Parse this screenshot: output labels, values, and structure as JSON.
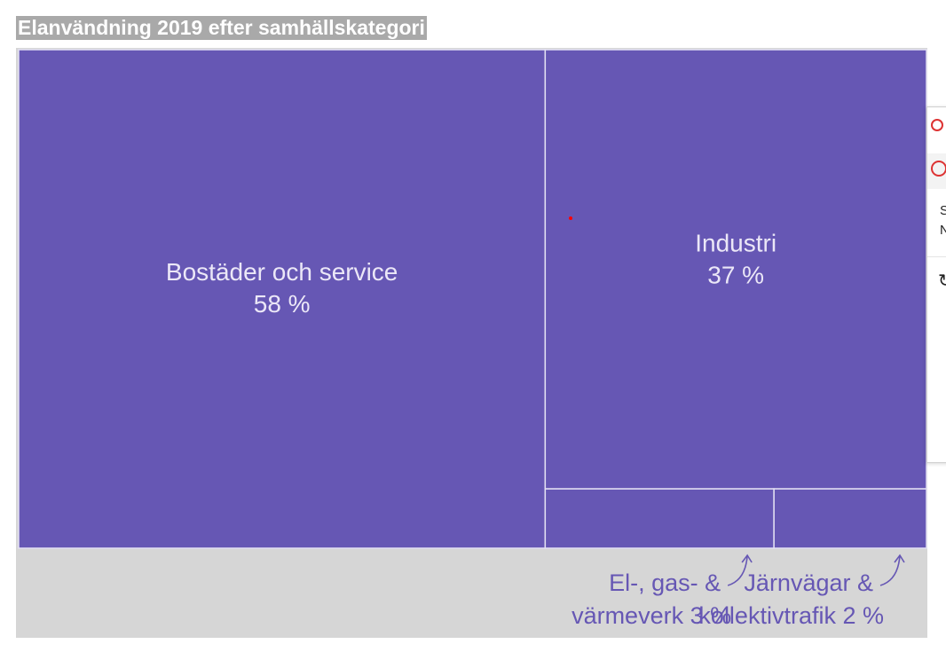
{
  "title": "Elanvändning 2019 efter samhällskategori",
  "colors": {
    "cell_fill": "#6657b4",
    "cell_label": "#ebe7f7",
    "background": "#d6d6d6",
    "title_background": "#a9a9a9"
  },
  "chart_data": {
    "type": "treemap",
    "title": "Elanvändning 2019 efter samhällskategori",
    "unit": "%",
    "items": [
      {
        "name": "Bostäder och service",
        "value": 58,
        "label": [
          "Bostäder och service",
          "58 %"
        ]
      },
      {
        "name": "Industri",
        "value": 37,
        "label": [
          "Industri",
          "37 %"
        ]
      },
      {
        "name": "El-, gas- & värmeverk",
        "value": 3,
        "label": [
          "El-, gas- &",
          "värmeverk 3 %"
        ]
      },
      {
        "name": "Järnvägar & kollektivtrafik",
        "value": 2,
        "label": [
          "Järnvägar &",
          "kollektivtrafik 2 %"
        ]
      }
    ]
  },
  "side_panel": {
    "lines": [
      "S",
      "N"
    ]
  }
}
